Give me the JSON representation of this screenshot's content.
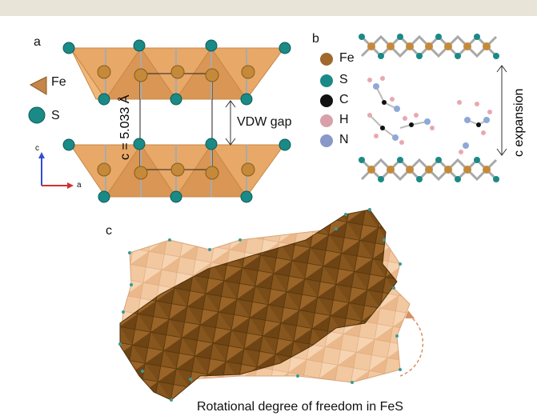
{
  "panels": {
    "a": {
      "letter": "a",
      "legend": {
        "fe": "Fe",
        "s": "S"
      },
      "c_param": "c = 5.033 Å",
      "vdw_gap": "VDW gap",
      "axis_c": "c",
      "axis_a": "a"
    },
    "b": {
      "letter": "b",
      "legend": [
        "Fe",
        "S",
        "C",
        "H",
        "N"
      ],
      "expansion": "c expansion"
    },
    "c": {
      "letter": "c",
      "caption": "Rotational degree of freedom in FeS"
    }
  },
  "colors": {
    "fe": "#b8782a",
    "s": "#1a8a86",
    "c": "#111111",
    "h": "#e8a8b0",
    "n": "#8fa8d8",
    "octa_light": "#e7a66a",
    "octa_dark": "#7a4a1a",
    "top_band": "#e9e4d8"
  }
}
